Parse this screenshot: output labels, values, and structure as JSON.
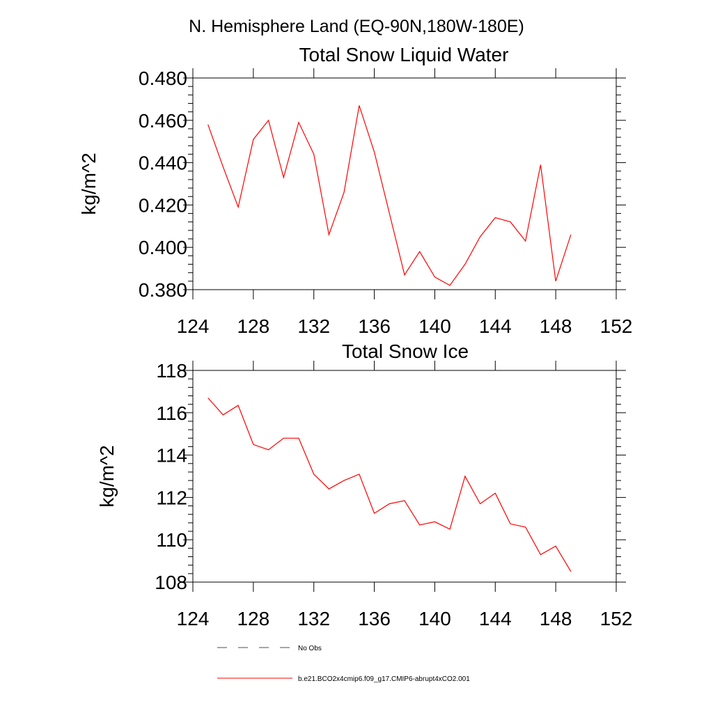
{
  "figure": {
    "title": "N. Hemisphere Land (EQ-90N,180W-180E)"
  },
  "chart_data": [
    {
      "type": "line",
      "title": "Total Snow Liquid Water",
      "xlabel": "",
      "ylabel": "kg/m^2",
      "xlim": [
        124,
        152
      ],
      "ylim": [
        0.38,
        0.48
      ],
      "xticks": [
        "124",
        "128",
        "132",
        "136",
        "140",
        "144",
        "148",
        "152"
      ],
      "yticks": [
        "0.380",
        "0.400",
        "0.420",
        "0.440",
        "0.460",
        "0.480"
      ],
      "series": [
        {
          "name": "b.e21.BCO2x4cmip6.f09_g17.CMIP6-abrupt4xCO2.001",
          "color": "#ff0000",
          "x": [
            125,
            126,
            127,
            128,
            129,
            130,
            131,
            132,
            133,
            134,
            135,
            136,
            137,
            138,
            139,
            140,
            141,
            142,
            143,
            144,
            145,
            146,
            147,
            148,
            149
          ],
          "y": [
            0.458,
            0.438,
            0.419,
            0.451,
            0.46,
            0.433,
            0.459,
            0.444,
            0.406,
            0.426,
            0.467,
            0.445,
            0.416,
            0.387,
            0.398,
            0.386,
            0.382,
            0.392,
            0.405,
            0.414,
            0.412,
            0.403,
            0.439,
            0.384,
            0.406
          ]
        }
      ]
    },
    {
      "type": "line",
      "title": "Total Snow Ice",
      "xlabel": "",
      "ylabel": "kg/m^2",
      "xlim": [
        124,
        152
      ],
      "ylim": [
        108,
        118
      ],
      "xticks": [
        "124",
        "128",
        "132",
        "136",
        "140",
        "144",
        "148",
        "152"
      ],
      "yticks": [
        "108",
        "110",
        "112",
        "114",
        "116",
        "118"
      ],
      "series": [
        {
          "name": "b.e21.BCO2x4cmip6.f09_g17.CMIP6-abrupt4xCO2.001",
          "color": "#ff0000",
          "x": [
            125,
            126,
            127,
            128,
            129,
            130,
            131,
            132,
            133,
            134,
            135,
            136,
            137,
            138,
            139,
            140,
            141,
            142,
            143,
            144,
            145,
            146,
            147,
            148,
            149
          ],
          "y": [
            116.7,
            115.9,
            116.35,
            114.5,
            114.25,
            114.8,
            114.8,
            113.1,
            112.4,
            112.8,
            113.1,
            111.25,
            111.7,
            111.85,
            110.7,
            110.85,
            110.5,
            113.0,
            111.7,
            112.2,
            110.75,
            110.6,
            109.3,
            109.7,
            108.5
          ]
        }
      ]
    }
  ],
  "legend": {
    "items": [
      {
        "label": "No Obs",
        "style": "dashed",
        "color": "#4a4a6a"
      },
      {
        "label": "b.e21.BCO2x4cmip6.f09_g17.CMIP6-abrupt4xCO2.001",
        "style": "solid",
        "color": "#ff0000"
      }
    ]
  }
}
